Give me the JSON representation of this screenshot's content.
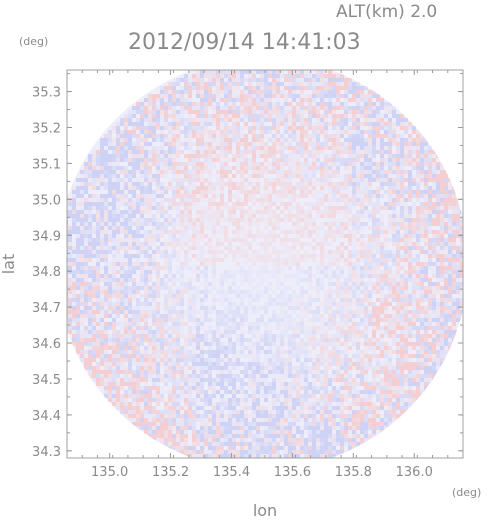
{
  "chart_data": {
    "type": "heatmap",
    "title": "2012/09/14 14:41:03",
    "altitude_label": "ALT(km) 2.0",
    "xlabel": "lon",
    "ylabel": "lat",
    "x_unit": "(deg)",
    "y_unit": "(deg)",
    "x_ticks": [
      "135.0",
      "135.2",
      "135.4",
      "135.6",
      "135.8",
      "136.0"
    ],
    "y_ticks": [
      "35.3",
      "35.2",
      "35.1",
      "35.0",
      "34.9",
      "34.8",
      "34.7",
      "34.6",
      "34.5",
      "34.4",
      "34.3"
    ],
    "xlim": [
      134.86,
      136.16
    ],
    "ylim": [
      34.28,
      35.36
    ],
    "grid": false,
    "colors": {
      "positive": "#f4c8c8",
      "negative": "#c8ccf2",
      "neutral": "#eeeefb",
      "axis": "#9a9a9a"
    }
  }
}
